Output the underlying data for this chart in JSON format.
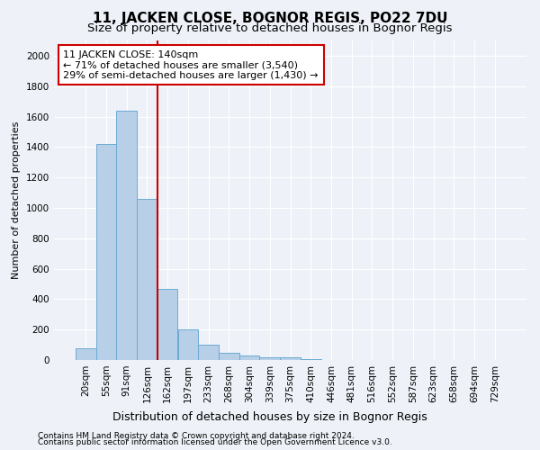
{
  "title1": "11, JACKEN CLOSE, BOGNOR REGIS, PO22 7DU",
  "title2": "Size of property relative to detached houses in Bognor Regis",
  "xlabel": "Distribution of detached houses by size in Bognor Regis",
  "ylabel": "Number of detached properties",
  "categories": [
    "20sqm",
    "55sqm",
    "91sqm",
    "126sqm",
    "162sqm",
    "197sqm",
    "233sqm",
    "268sqm",
    "304sqm",
    "339sqm",
    "375sqm",
    "410sqm",
    "446sqm",
    "481sqm",
    "516sqm",
    "552sqm",
    "587sqm",
    "623sqm",
    "658sqm",
    "694sqm",
    "729sqm"
  ],
  "values": [
    75,
    1420,
    1640,
    1060,
    470,
    200,
    100,
    50,
    30,
    20,
    15,
    5,
    0,
    0,
    0,
    0,
    0,
    0,
    0,
    0,
    0
  ],
  "bar_color": "#b8cfe8",
  "bar_edge_color": "#6baad4",
  "vline_color": "#cc0000",
  "annotation_line1": "11 JACKEN CLOSE: 140sqm",
  "annotation_line2": "← 71% of detached houses are smaller (3,540)",
  "annotation_line3": "29% of semi-detached houses are larger (1,430) →",
  "annotation_box_color": "#ffffff",
  "annotation_box_edge": "#cc0000",
  "ylim": [
    0,
    2100
  ],
  "yticks": [
    0,
    200,
    400,
    600,
    800,
    1000,
    1200,
    1400,
    1600,
    1800,
    2000
  ],
  "footer1": "Contains HM Land Registry data © Crown copyright and database right 2024.",
  "footer2": "Contains public sector information licensed under the Open Government Licence v3.0.",
  "bg_color": "#eef2f8",
  "grid_color": "#ffffff",
  "title1_fontsize": 11,
  "title2_fontsize": 9.5,
  "tick_fontsize": 7.5,
  "ylabel_fontsize": 8,
  "xlabel_fontsize": 9,
  "ann_fontsize": 8,
  "footer_fontsize": 6.5
}
